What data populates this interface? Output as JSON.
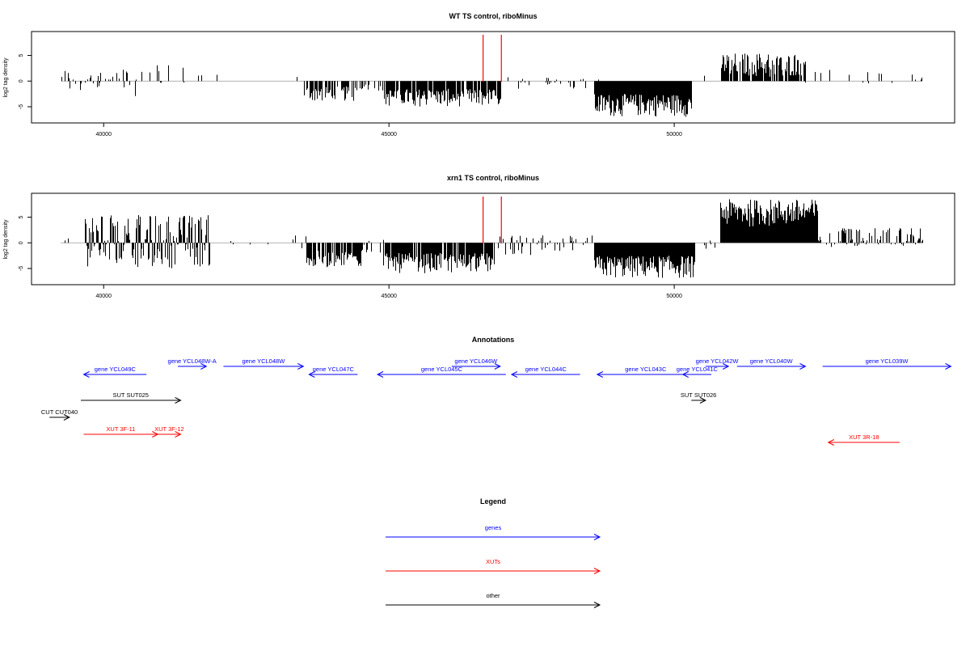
{
  "colors": {
    "gene": "#0000ff",
    "xut": "#ff0000",
    "other": "#000000",
    "marker": "#ff0000",
    "bar": "#000000",
    "axis": "#000000",
    "zero": "#999999"
  },
  "chart_data": [
    {
      "type": "bar",
      "title": "WT TS control, riboMinus",
      "ylabel": "log2 tag density",
      "xlim": [
        38750,
        54900
      ],
      "ylim": [
        -8,
        9.5
      ],
      "xticks": [
        40000,
        45000,
        50000
      ],
      "xtick_labels": [
        "40000",
        "45000",
        "50000"
      ],
      "yticks": [
        5,
        0,
        -5
      ],
      "ytick_labels": [
        "5",
        "0",
        "-5"
      ],
      "markers": [
        46650,
        46970
      ],
      "regions": [
        {
          "start": 39250,
          "end": 40600,
          "min": -3,
          "max": 2.5,
          "density": 0.35
        },
        {
          "start": 40600,
          "end": 41800,
          "min": -1.2,
          "max": 3.5,
          "density": 0.15
        },
        {
          "start": 41800,
          "end": 42000,
          "min": 0.5,
          "max": 1.5,
          "density": 0.05
        },
        {
          "start": 43300,
          "end": 43400,
          "min": 0.5,
          "max": 1.5,
          "density": 0.2
        },
        {
          "start": 43500,
          "end": 44400,
          "min": -4,
          "max": -1,
          "density": 0.7
        },
        {
          "start": 44400,
          "end": 44900,
          "min": -2,
          "max": -0.3,
          "density": 0.2
        },
        {
          "start": 44900,
          "end": 46950,
          "min": -5,
          "max": -1.5,
          "density": 0.9
        },
        {
          "start": 46950,
          "end": 48700,
          "min": -1.5,
          "max": 0.8,
          "density": 0.12
        },
        {
          "start": 48600,
          "end": 50300,
          "min": -7,
          "max": -2.5,
          "density": 1.0
        },
        {
          "start": 50500,
          "end": 50650,
          "min": 0.5,
          "max": 1.5,
          "density": 0.1
        },
        {
          "start": 50800,
          "end": 52300,
          "min": 0.8,
          "max": 5.5,
          "density": 0.85
        },
        {
          "start": 52300,
          "end": 54350,
          "min": -1,
          "max": 2.2,
          "density": 0.1
        }
      ]
    },
    {
      "type": "bar",
      "title": "xrn1 TS control, riboMinus",
      "ylabel": "log2 tag density",
      "xlim": [
        38750,
        54900
      ],
      "ylim": [
        -8,
        9.5
      ],
      "xticks": [
        40000,
        45000,
        50000
      ],
      "xtick_labels": [
        "40000",
        "45000",
        "50000"
      ],
      "yticks": [
        5,
        0,
        -5
      ],
      "ytick_labels": [
        "5",
        "0",
        "-5"
      ],
      "markers": [
        46650,
        46970
      ],
      "regions": [
        {
          "start": 39250,
          "end": 39650,
          "min": -1,
          "max": 1.5,
          "density": 0.2
        },
        {
          "start": 39650,
          "end": 41850,
          "min": -5,
          "max": 5.5,
          "density": 0.85
        },
        {
          "start": 41850,
          "end": 43300,
          "min": -0.5,
          "max": 0.8,
          "density": 0.06
        },
        {
          "start": 43300,
          "end": 43550,
          "min": -1.2,
          "max": 2,
          "density": 0.25
        },
        {
          "start": 43550,
          "end": 44500,
          "min": -5,
          "max": -1.5,
          "density": 0.8
        },
        {
          "start": 44500,
          "end": 44900,
          "min": -2.5,
          "max": 1,
          "density": 0.3
        },
        {
          "start": 44900,
          "end": 46850,
          "min": -6,
          "max": -2,
          "density": 0.9
        },
        {
          "start": 46850,
          "end": 48600,
          "min": -3,
          "max": 1.5,
          "density": 0.35
        },
        {
          "start": 48600,
          "end": 50350,
          "min": -7,
          "max": -2.5,
          "density": 1.0
        },
        {
          "start": 50350,
          "end": 50700,
          "min": -1.5,
          "max": 0.5,
          "density": 0.2
        },
        {
          "start": 50800,
          "end": 52500,
          "min": 3,
          "max": 8.5,
          "density": 1.0
        },
        {
          "start": 52500,
          "end": 54350,
          "min": -1,
          "max": 3,
          "density": 0.45
        }
      ]
    },
    {
      "type": "annotation",
      "title": "Annotations",
      "xlim": [
        38750,
        54900
      ],
      "features": [
        {
          "label": "gene YCL049C",
          "class": "gene",
          "start": 39650,
          "end": 40750,
          "strand": "-",
          "lane": 1
        },
        {
          "label": "gene YCL048W-A",
          "class": "gene",
          "start": 41300,
          "end": 41800,
          "strand": "+",
          "lane": 0
        },
        {
          "label": "gene YCL048W",
          "class": "gene",
          "start": 42100,
          "end": 43500,
          "strand": "+",
          "lane": 0
        },
        {
          "label": "gene YCL047C",
          "class": "gene",
          "start": 43600,
          "end": 44450,
          "strand": "-",
          "lane": 1
        },
        {
          "label": "gene YCL045C",
          "class": "gene",
          "start": 44800,
          "end": 47050,
          "strand": "-",
          "lane": 1
        },
        {
          "label": "gene YCL046W",
          "class": "gene",
          "start": 46100,
          "end": 46950,
          "strand": "+",
          "lane": 0
        },
        {
          "label": "gene YCL044C",
          "class": "gene",
          "start": 47150,
          "end": 48350,
          "strand": "-",
          "lane": 1
        },
        {
          "label": "gene YCL043C",
          "class": "gene",
          "start": 48650,
          "end": 50350,
          "strand": "-",
          "lane": 1
        },
        {
          "label": "gene YCL041C",
          "class": "gene",
          "start": 50150,
          "end": 50650,
          "strand": "-",
          "lane": 1
        },
        {
          "label": "gene YCL042W",
          "class": "gene",
          "start": 50550,
          "end": 50950,
          "strand": "+",
          "lane": 0
        },
        {
          "label": "gene YCL040W",
          "class": "gene",
          "start": 51100,
          "end": 52300,
          "strand": "+",
          "lane": 0
        },
        {
          "label": "gene YCL039W",
          "class": "gene",
          "start": 52600,
          "end": 54850,
          "strand": "+",
          "lane": 0
        },
        {
          "label": "SUT SUT025",
          "class": "other",
          "start": 39600,
          "end": 41350,
          "strand": "+",
          "lane": 2
        },
        {
          "label": "SUT SUT026",
          "class": "other",
          "start": 50300,
          "end": 50550,
          "strand": "+",
          "lane": 2
        },
        {
          "label": "CUT CUT040",
          "class": "other",
          "start": 39050,
          "end": 39400,
          "strand": "+",
          "lane": 3
        },
        {
          "label": "XUT 3F-11",
          "class": "xut",
          "start": 39650,
          "end": 40950,
          "strand": "+",
          "lane": 4
        },
        {
          "label": "XUT 3F-12",
          "class": "xut",
          "start": 40950,
          "end": 41350,
          "strand": "+",
          "lane": 4
        },
        {
          "label": "XUT 3R-18",
          "class": "xut",
          "start": 52700,
          "end": 53950,
          "strand": "-",
          "lane": 5
        }
      ]
    },
    {
      "type": "legend",
      "title": "Legend",
      "items": [
        {
          "label": "genes",
          "class": "gene"
        },
        {
          "label": "XUTs",
          "class": "xut"
        },
        {
          "label": "other",
          "class": "other"
        }
      ]
    }
  ]
}
